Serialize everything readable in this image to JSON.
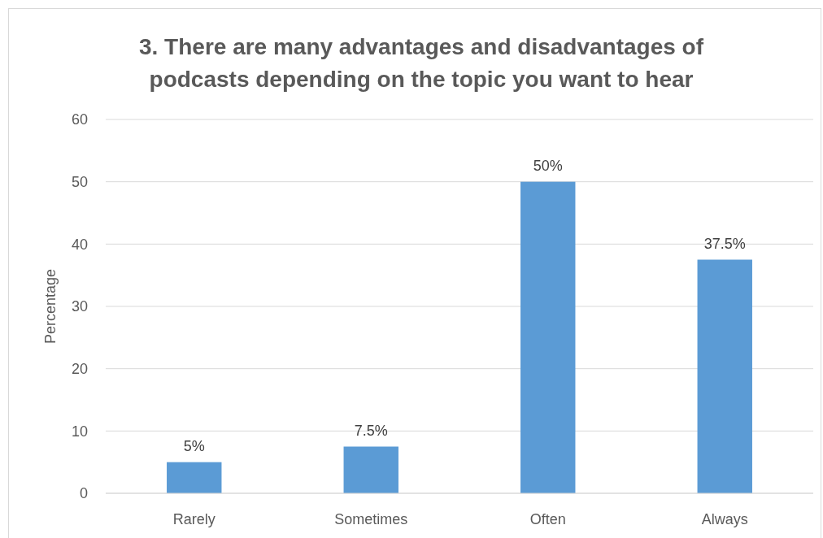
{
  "chart_data": {
    "type": "bar",
    "title": "3. There are many advantages and disadvantages of podcasts depending on the topic you want to hear",
    "ylabel": "Percentage",
    "categories": [
      "Rarely",
      "Sometimes",
      "Often",
      "Always"
    ],
    "values": [
      5,
      7.5,
      50,
      37.5
    ],
    "value_labels": [
      "5%",
      "7.5%",
      "50%",
      "37.5%"
    ],
    "color": "#5b9bd5",
    "ylim": [
      0,
      60
    ],
    "yticks": [
      0,
      10,
      20,
      30,
      40,
      50,
      60
    ],
    "grid": "y"
  }
}
